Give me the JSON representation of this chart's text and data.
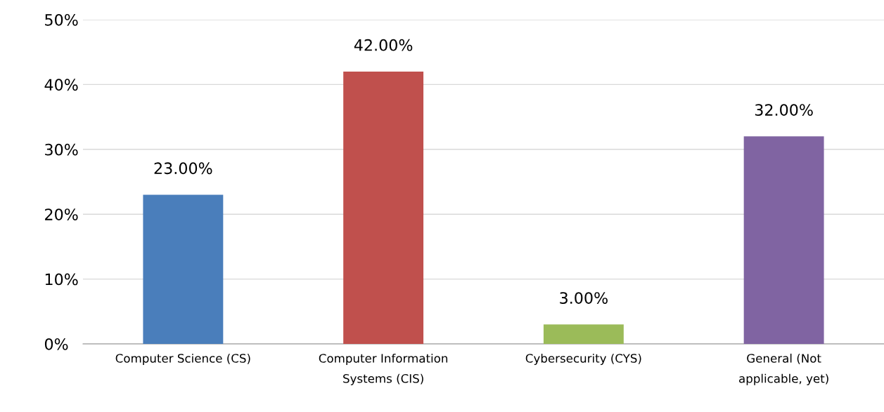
{
  "chart_data": {
    "type": "bar",
    "categories": [
      "Computer Science (CS)",
      "Computer Information Systems (CIS)",
      "Cybersecurity (CYS)",
      "General (Not applicable, yet)"
    ],
    "values": [
      23,
      42,
      3,
      32
    ],
    "colors": [
      "#4a7ebb",
      "#c0504d",
      "#9bbb59",
      "#8064a2"
    ],
    "value_labels": [
      "23.00%",
      "42.00%",
      "3.00%",
      "32.00%"
    ],
    "ylim": [
      0,
      50
    ],
    "yticks": [
      {
        "value": 0,
        "label": "0%"
      },
      {
        "value": 10,
        "label": "10%"
      },
      {
        "value": 20,
        "label": "20%"
      },
      {
        "value": 30,
        "label": "30%"
      },
      {
        "value": 40,
        "label": "40%"
      },
      {
        "value": 50,
        "label": "50%"
      }
    ],
    "grid": "y",
    "legend": false
  }
}
